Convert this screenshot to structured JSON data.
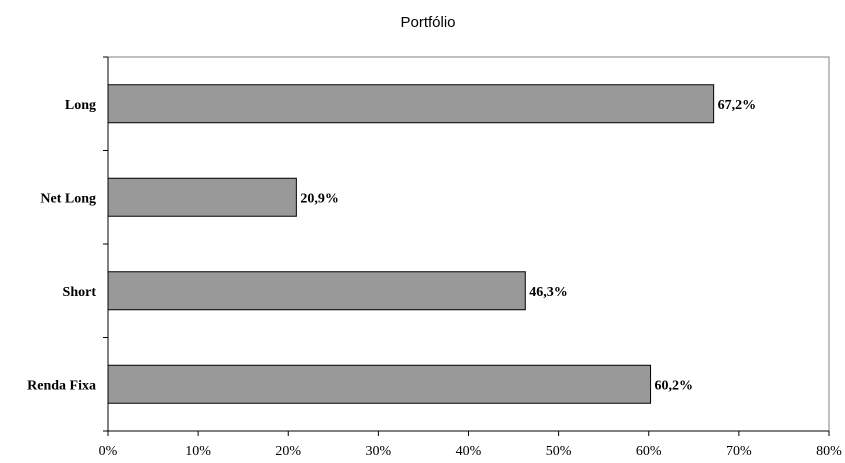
{
  "chart_data": {
    "type": "bar",
    "orientation": "horizontal",
    "title": "Portfólio",
    "xlabel": "",
    "ylabel": "",
    "categories": [
      "Long",
      "Net Long",
      "Short",
      "Renda Fixa"
    ],
    "values": [
      67.2,
      20.9,
      46.3,
      60.2
    ],
    "data_labels": [
      "67,2%",
      "20,9%",
      "46,3%",
      "60,2%"
    ],
    "xlim": [
      0,
      80
    ],
    "x_ticks": [
      0,
      10,
      20,
      30,
      40,
      50,
      60,
      70,
      80
    ],
    "x_tick_labels": [
      "0%",
      "10%",
      "20%",
      "30%",
      "40%",
      "50%",
      "60%",
      "70%",
      "80%"
    ],
    "grid": false,
    "legend": "none",
    "colors": {
      "bar_fill": "#999999",
      "bar_stroke": "#000000",
      "plot_border": "#808080",
      "axis": "#000000"
    }
  }
}
